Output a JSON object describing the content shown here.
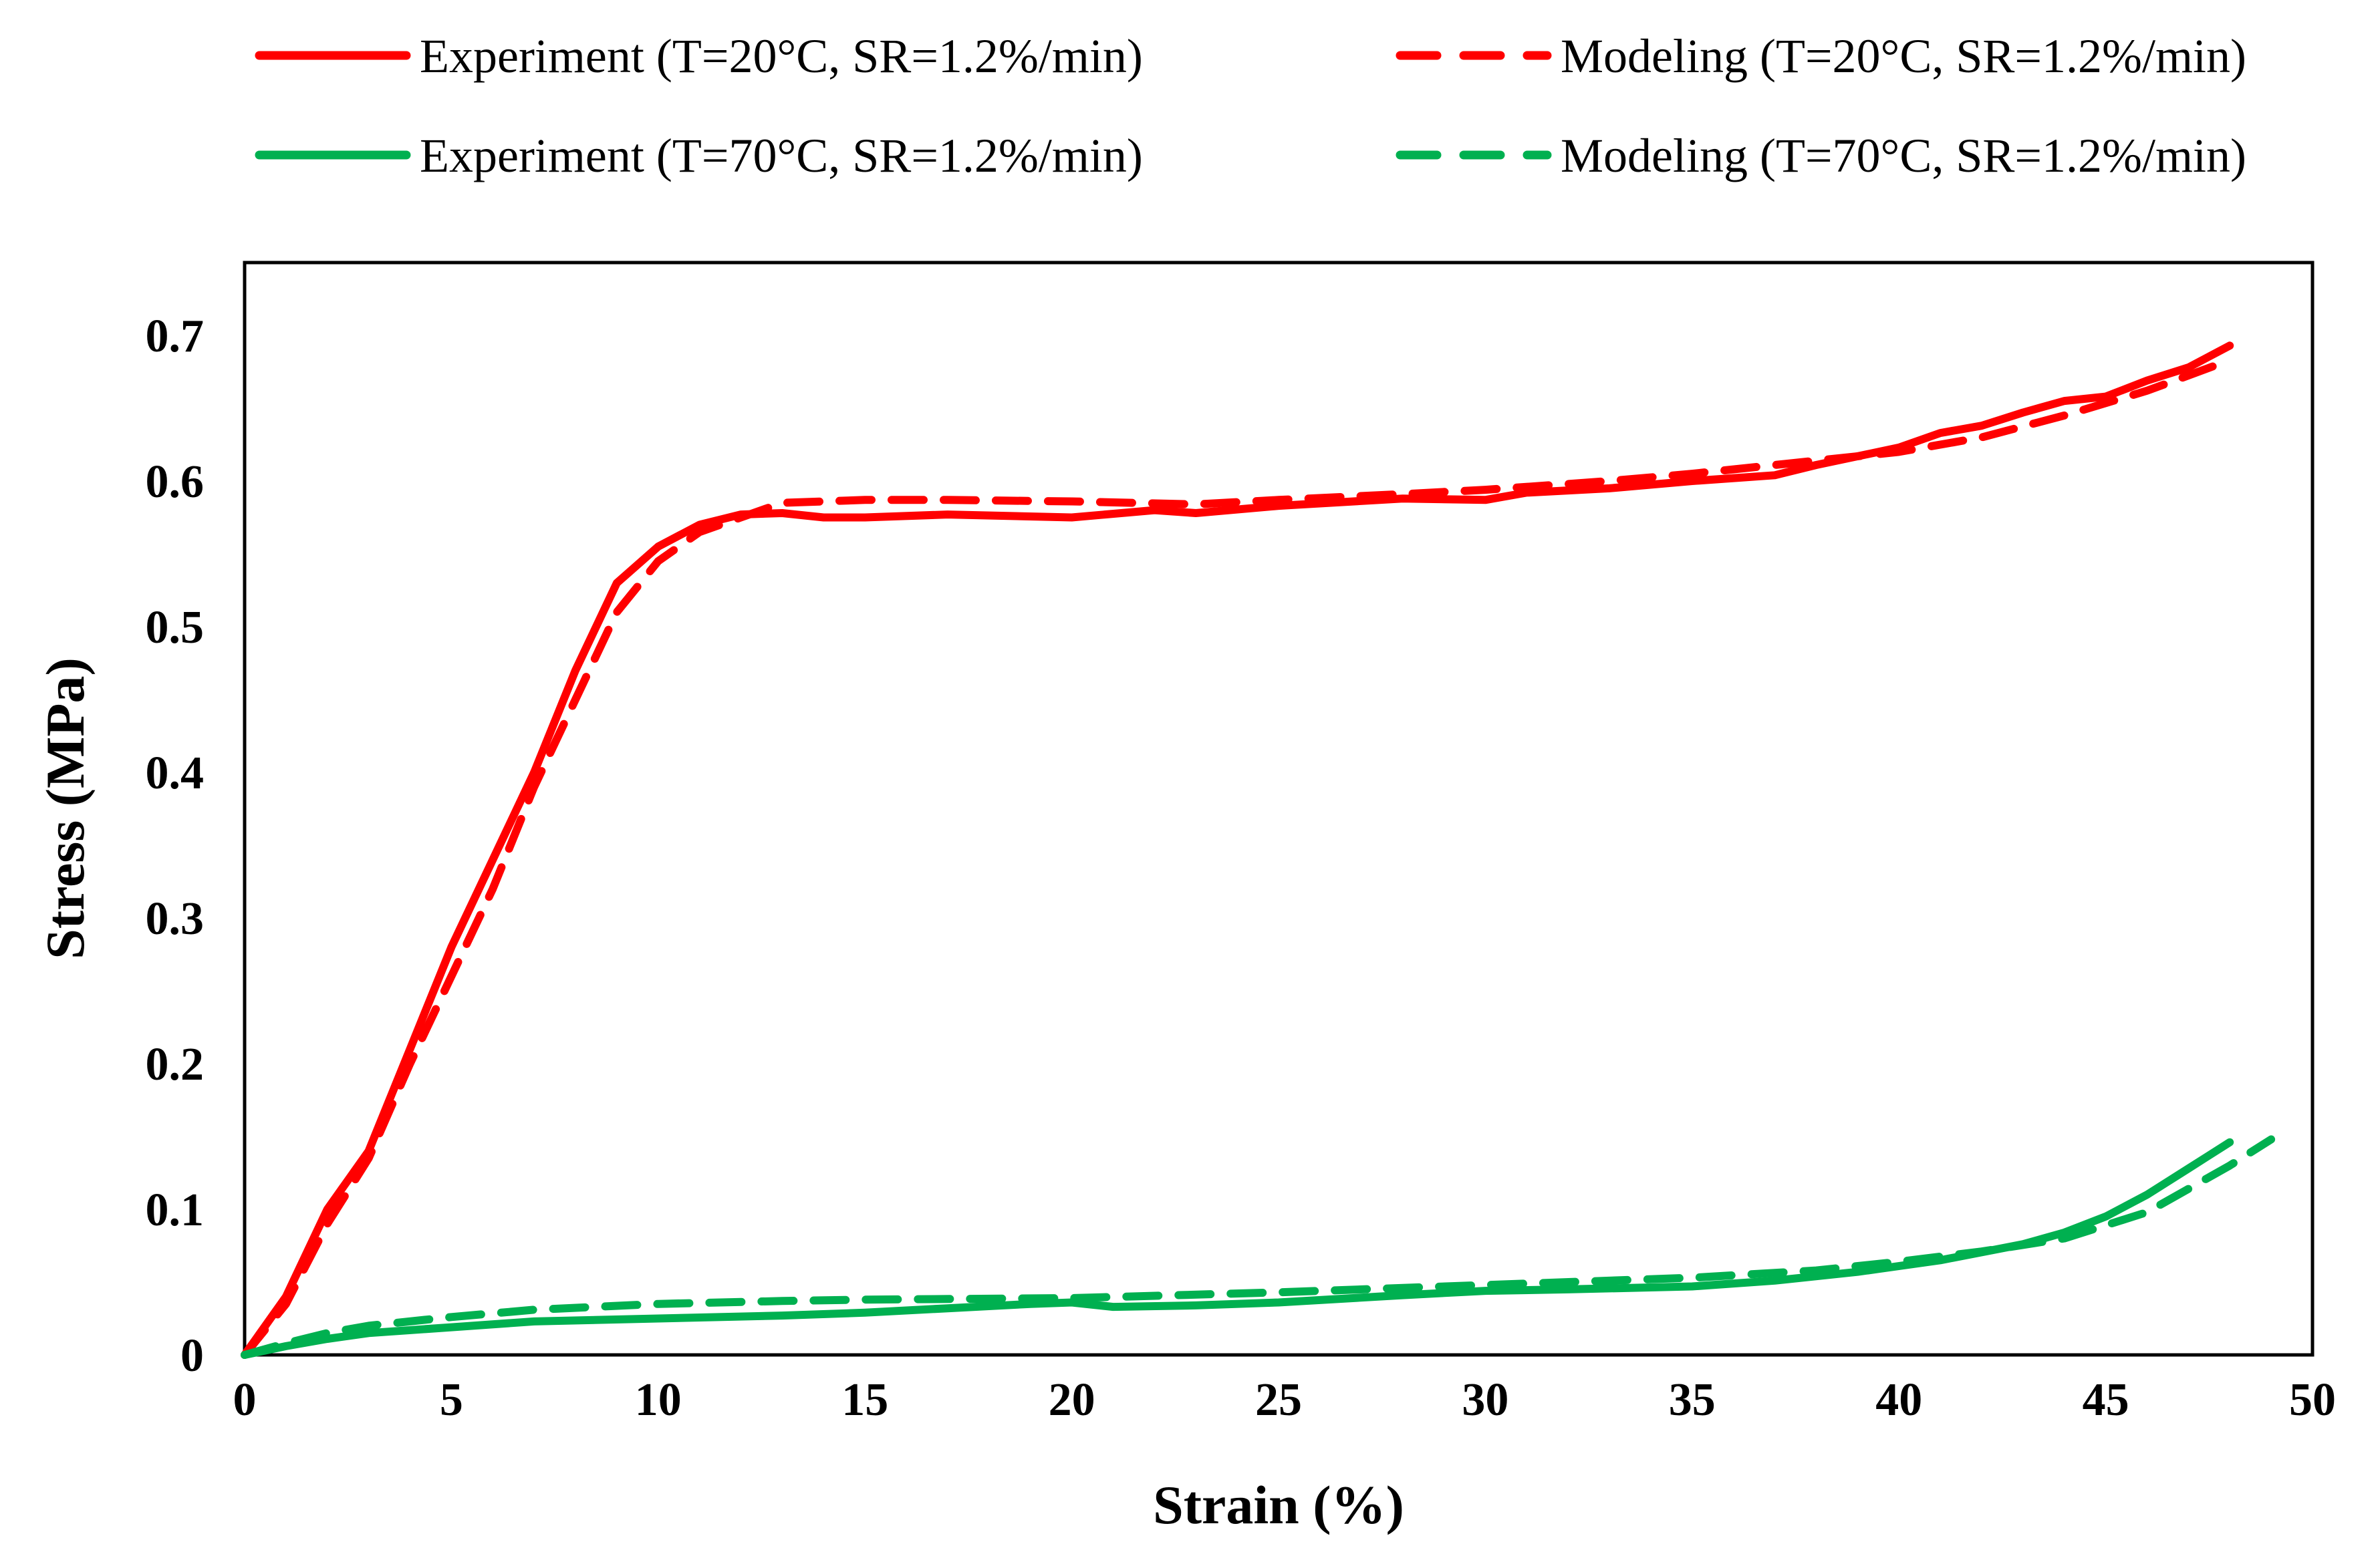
{
  "chart_data": {
    "type": "line",
    "title": "",
    "xlabel": "Strain (%)",
    "ylabel": "Stress (MPa)",
    "xlim": [
      0,
      50
    ],
    "ylim": [
      0,
      0.75
    ],
    "x_ticks": [
      "0",
      "5",
      "10",
      "15",
      "20",
      "25",
      "30",
      "35",
      "40",
      "45",
      "50"
    ],
    "y_ticks": [
      "0",
      "0.1",
      "0.2",
      "0.3",
      "0.4",
      "0.5",
      "0.6",
      "0.7"
    ],
    "grid": false,
    "legend_position": "top",
    "series": [
      {
        "name": "Experiment (T=20°C, SR=1.2%/min)",
        "color": "#ff0000",
        "style": "solid",
        "points": [
          [
            0,
            0
          ],
          [
            1,
            0.04
          ],
          [
            2,
            0.1
          ],
          [
            3,
            0.14
          ],
          [
            4,
            0.21
          ],
          [
            5,
            0.28
          ],
          [
            6,
            0.34
          ],
          [
            7,
            0.4
          ],
          [
            8,
            0.47
          ],
          [
            9,
            0.53
          ],
          [
            10,
            0.555
          ],
          [
            11,
            0.57
          ],
          [
            12,
            0.577
          ],
          [
            13,
            0.578
          ],
          [
            14,
            0.575
          ],
          [
            15,
            0.575
          ],
          [
            17,
            0.577
          ],
          [
            20,
            0.575
          ],
          [
            22,
            0.58
          ],
          [
            23,
            0.578
          ],
          [
            25,
            0.583
          ],
          [
            28,
            0.588
          ],
          [
            30,
            0.587
          ],
          [
            31,
            0.592
          ],
          [
            33,
            0.595
          ],
          [
            35,
            0.6
          ],
          [
            37,
            0.604
          ],
          [
            38,
            0.611
          ],
          [
            40,
            0.623
          ],
          [
            41,
            0.633
          ],
          [
            42,
            0.638
          ],
          [
            43,
            0.647
          ],
          [
            44,
            0.655
          ],
          [
            45,
            0.658
          ],
          [
            46,
            0.669
          ],
          [
            47,
            0.678
          ],
          [
            48,
            0.693
          ]
        ]
      },
      {
        "name": "Modeling (T=20°C, SR=1.2%/min)",
        "color": "#ff0000",
        "style": "dashed",
        "points": [
          [
            0,
            0
          ],
          [
            1,
            0.035
          ],
          [
            2,
            0.09
          ],
          [
            3,
            0.135
          ],
          [
            4,
            0.2
          ],
          [
            5,
            0.26
          ],
          [
            6,
            0.32
          ],
          [
            7,
            0.39
          ],
          [
            8,
            0.45
          ],
          [
            9,
            0.51
          ],
          [
            10,
            0.545
          ],
          [
            11,
            0.565
          ],
          [
            12,
            0.575
          ],
          [
            13,
            0.585
          ],
          [
            15,
            0.587
          ],
          [
            17,
            0.587
          ],
          [
            20,
            0.586
          ],
          [
            23,
            0.584
          ],
          [
            25,
            0.587
          ],
          [
            28,
            0.591
          ],
          [
            30,
            0.594
          ],
          [
            33,
            0.6
          ],
          [
            35,
            0.605
          ],
          [
            37,
            0.611
          ],
          [
            40,
            0.62
          ],
          [
            42,
            0.63
          ],
          [
            44,
            0.645
          ],
          [
            46,
            0.662
          ],
          [
            48,
            0.683
          ]
        ]
      },
      {
        "name": "Experiment (T=70°C, SR=1.2%/min)",
        "color": "#00b050",
        "style": "solid",
        "points": [
          [
            0,
            0
          ],
          [
            1,
            0.006
          ],
          [
            2,
            0.011
          ],
          [
            3,
            0.015
          ],
          [
            5,
            0.019
          ],
          [
            7,
            0.023
          ],
          [
            10,
            0.025
          ],
          [
            13,
            0.027
          ],
          [
            15,
            0.029
          ],
          [
            17,
            0.032
          ],
          [
            19,
            0.035
          ],
          [
            20,
            0.036
          ],
          [
            21,
            0.033
          ],
          [
            23,
            0.034
          ],
          [
            25,
            0.036
          ],
          [
            28,
            0.041
          ],
          [
            30,
            0.044
          ],
          [
            32,
            0.045
          ],
          [
            35,
            0.047
          ],
          [
            37,
            0.051
          ],
          [
            39,
            0.057
          ],
          [
            41,
            0.065
          ],
          [
            43,
            0.076
          ],
          [
            44,
            0.084
          ],
          [
            45,
            0.095
          ],
          [
            46,
            0.11
          ],
          [
            47,
            0.128
          ],
          [
            48,
            0.146
          ]
        ]
      },
      {
        "name": "Modeling (T=70°C, SR=1.2%/min)",
        "color": "#00b050",
        "style": "dashed",
        "points": [
          [
            0,
            0
          ],
          [
            1,
            0.008
          ],
          [
            2,
            0.015
          ],
          [
            3,
            0.02
          ],
          [
            5,
            0.026
          ],
          [
            7,
            0.031
          ],
          [
            10,
            0.035
          ],
          [
            13,
            0.037
          ],
          [
            15,
            0.038
          ],
          [
            20,
            0.039
          ],
          [
            25,
            0.043
          ],
          [
            30,
            0.048
          ],
          [
            35,
            0.053
          ],
          [
            38,
            0.058
          ],
          [
            40,
            0.064
          ],
          [
            42,
            0.071
          ],
          [
            44,
            0.08
          ],
          [
            46,
            0.098
          ],
          [
            47,
            0.114
          ],
          [
            48,
            0.13
          ],
          [
            49,
            0.148
          ]
        ]
      }
    ]
  }
}
